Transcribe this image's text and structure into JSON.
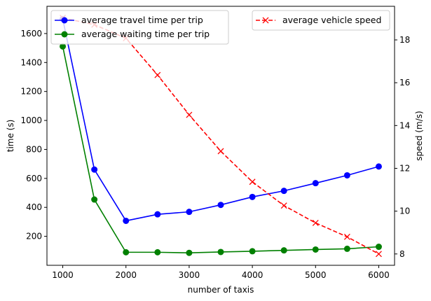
{
  "chart_data": {
    "type": "line",
    "xlabel": "number of taxis",
    "ylabel_left": "time (s)",
    "ylabel_right": "speed (m/s)",
    "x": [
      1000,
      1500,
      2000,
      2500,
      3000,
      3500,
      4000,
      4500,
      5000,
      5500,
      6000
    ],
    "xlim": [
      750,
      6250
    ],
    "ylim_left": [
      0,
      1788
    ],
    "ylim_right": [
      7.47,
      19.57
    ],
    "xticks": [
      "1000",
      "2000",
      "3000",
      "4000",
      "5000",
      "6000"
    ],
    "yticks_left": [
      "200",
      "400",
      "600",
      "800",
      "1000",
      "1200",
      "1400",
      "1600"
    ],
    "yticks_right": [
      "8",
      "10",
      "12",
      "14",
      "16",
      "18"
    ],
    "grid": false,
    "series": [
      {
        "name": "average travel time per trip",
        "axis": "left",
        "color": "#0000ff",
        "marker": "circle",
        "linestyle": "solid",
        "values": [
          1700,
          661,
          307,
          352,
          369,
          417,
          472,
          514,
          567,
          621,
          682
        ]
      },
      {
        "name": "average waiting time per trip",
        "axis": "left",
        "color": "#008000",
        "marker": "circle",
        "linestyle": "solid",
        "values": [
          1511,
          454,
          90,
          90,
          86,
          92,
          97,
          103,
          109,
          114,
          128
        ]
      },
      {
        "name": "average vehicle speed",
        "axis": "right",
        "color": "#ff0000",
        "marker": "x",
        "linestyle": "dashed",
        "values": [
          19.03,
          18.71,
          18.08,
          16.36,
          14.5,
          12.8,
          11.37,
          10.26,
          9.45,
          8.8,
          8.0
        ]
      }
    ],
    "legend": [
      "upper-left (travel, waiting)",
      "upper-right (speed)"
    ]
  }
}
